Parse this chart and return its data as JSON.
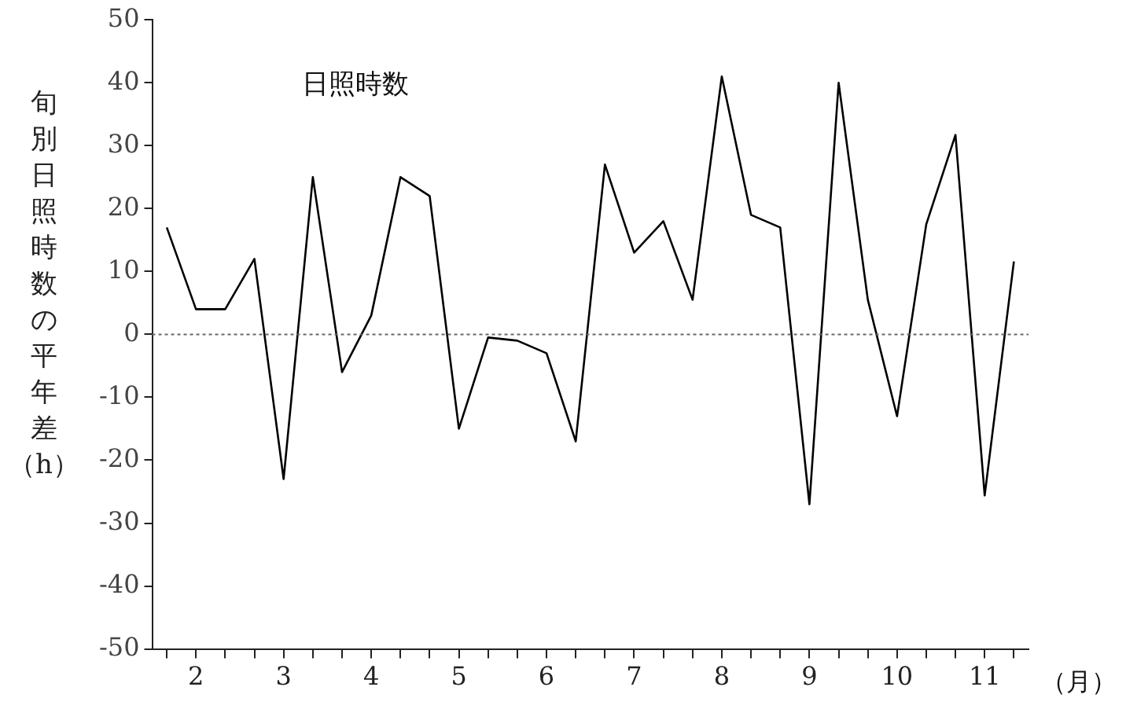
{
  "chart_data": {
    "type": "line",
    "title": "日照時数",
    "ylabel": "旬別日照時数の平年差（h）",
    "xlabel": "（月）",
    "categories": [
      null,
      "2",
      null,
      null,
      "3",
      null,
      null,
      "4",
      null,
      null,
      "5",
      null,
      null,
      "6",
      null,
      null,
      "7",
      null,
      null,
      "8",
      null,
      null,
      "9",
      null,
      null,
      "10",
      null,
      null,
      "11",
      null
    ],
    "series": [
      {
        "color": "#000000",
        "values": [
          17,
          4,
          4,
          12,
          -23,
          25,
          -6,
          3,
          25,
          22,
          -15,
          -0.5,
          -1,
          -3,
          -17,
          27,
          13,
          18,
          5.5,
          41,
          19,
          17,
          -27,
          40,
          5.5,
          -13,
          17.5,
          31.7,
          -25.6,
          11.6
        ]
      }
    ],
    "ylim": [
      -50,
      50
    ],
    "yticks": [
      -50,
      -40,
      -30,
      -20,
      -10,
      0,
      10,
      20,
      30,
      40,
      50
    ],
    "grid": false,
    "legend": false,
    "marker": "none",
    "line_style": "solid",
    "ref_lines": [
      {
        "axis": "y",
        "value": 0,
        "color": "#666666",
        "line_style": "dotted"
      }
    ]
  }
}
